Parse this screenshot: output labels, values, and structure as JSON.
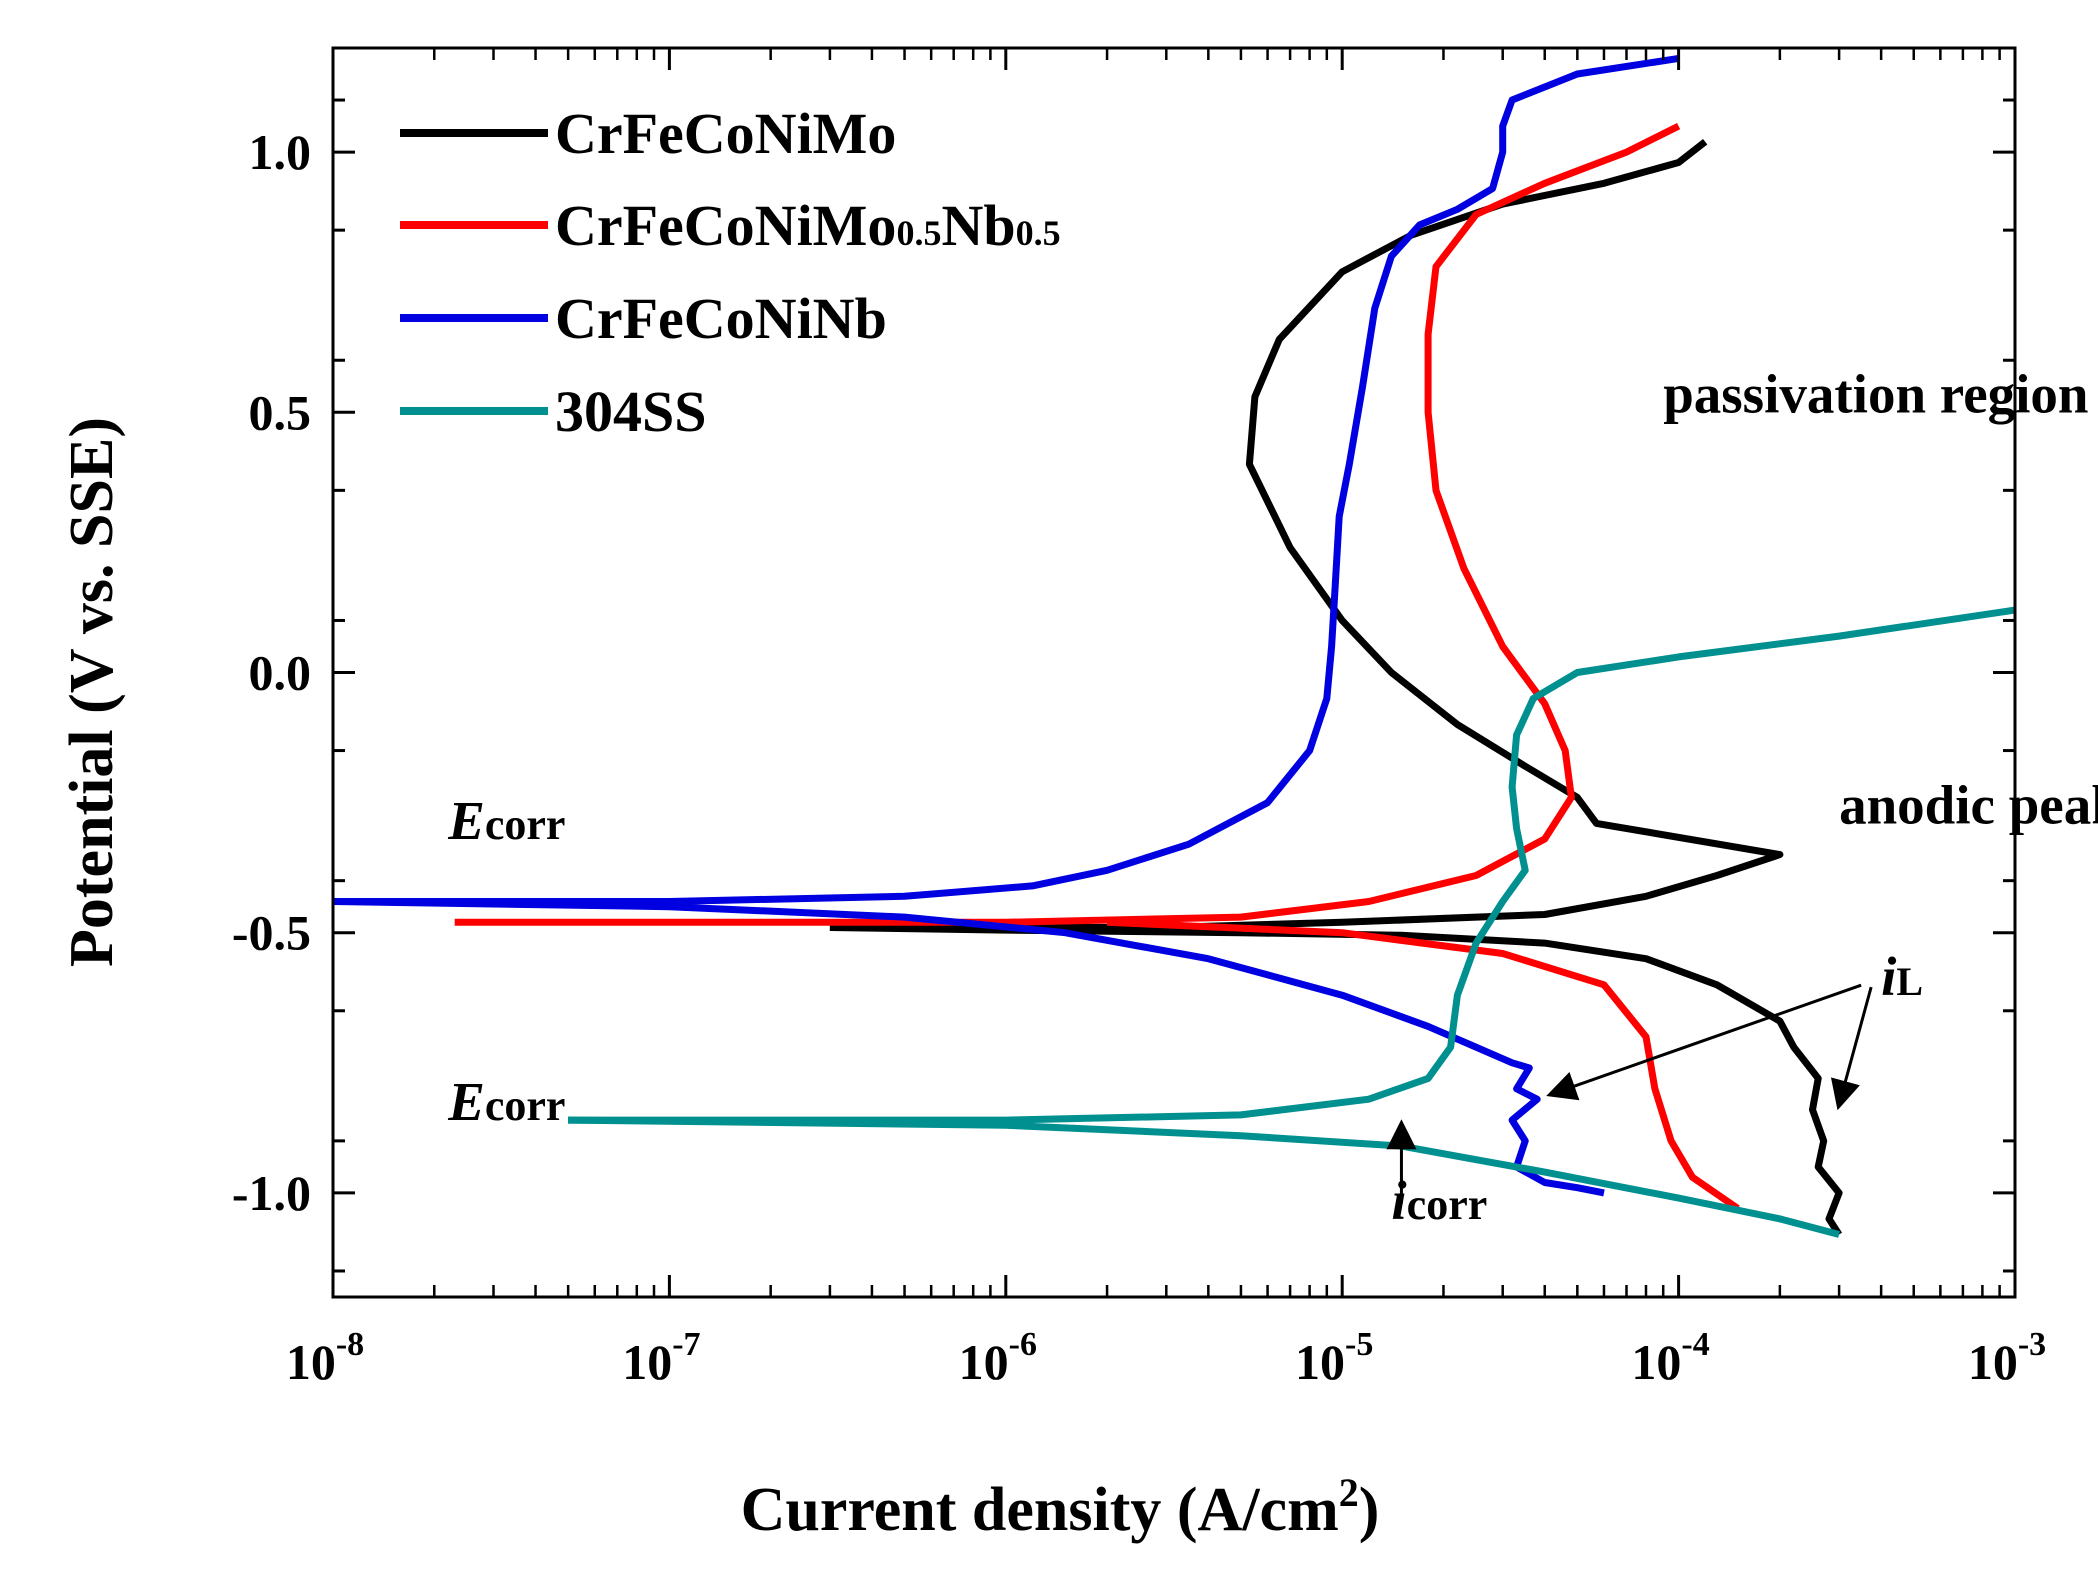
{
  "chart_data": {
    "type": "line",
    "title": "",
    "xlabel": "Current density (A/cm",
    "xlabel_sup": "2",
    "xlabel_close": ")",
    "ylabel": "Potential (V vs. SSE)",
    "xscale": "log",
    "xlim": [
      1e-08,
      0.001
    ],
    "ylim": [
      -1.2,
      1.2
    ],
    "x_ticks": [
      {
        "value": 1e-08,
        "base": "10",
        "exp": "-8"
      },
      {
        "value": 1e-07,
        "base": "10",
        "exp": "-7"
      },
      {
        "value": 1e-06,
        "base": "10",
        "exp": "-6"
      },
      {
        "value": 1e-05,
        "base": "10",
        "exp": "-5"
      },
      {
        "value": 0.0001,
        "base": "10",
        "exp": "-4"
      },
      {
        "value": 0.001,
        "base": "10",
        "exp": "-3"
      }
    ],
    "y_ticks": [
      {
        "value": 1.0,
        "label": "1.0"
      },
      {
        "value": 0.5,
        "label": "0.5"
      },
      {
        "value": 0.0,
        "label": "0.0"
      },
      {
        "value": -0.5,
        "label": "-0.5"
      },
      {
        "value": -1.0,
        "label": "-1.0"
      }
    ],
    "legend_position": "top-left",
    "series": [
      {
        "name": "CrFeCoNiMo",
        "name_main": "CrFeCoNiMo",
        "name_parts": [],
        "color": "#000000",
        "points": [
          [
            3e-07,
            -0.49
          ],
          [
            1e-06,
            -0.49
          ],
          [
            3e-06,
            -0.49
          ],
          [
            1e-05,
            -0.48
          ],
          [
            4e-05,
            -0.465
          ],
          [
            8e-05,
            -0.43
          ],
          [
            0.00013,
            -0.39
          ],
          [
            0.0002,
            -0.35
          ],
          [
            5.7e-05,
            -0.29
          ],
          [
            5e-05,
            -0.24
          ],
          [
            3.5e-05,
            -0.18
          ],
          [
            2.2e-05,
            -0.1
          ],
          [
            1.4e-05,
            0.0
          ],
          [
            1e-05,
            0.1
          ],
          [
            7e-06,
            0.24
          ],
          [
            5.3e-06,
            0.4
          ],
          [
            5.5e-06,
            0.53
          ],
          [
            6.5e-06,
            0.64
          ],
          [
            1e-05,
            0.77
          ],
          [
            1.6e-05,
            0.84
          ],
          [
            3e-05,
            0.9
          ],
          [
            6e-05,
            0.94
          ],
          [
            0.0001,
            0.98
          ],
          [
            0.00012,
            1.02
          ]
        ],
        "cathodic": [
          [
            3e-07,
            -0.49
          ],
          [
            1e-06,
            -0.495
          ],
          [
            5e-06,
            -0.5
          ],
          [
            1.5e-05,
            -0.505
          ],
          [
            4e-05,
            -0.52
          ],
          [
            8e-05,
            -0.55
          ],
          [
            0.00013,
            -0.6
          ],
          [
            0.0002,
            -0.67
          ],
          [
            0.00022,
            -0.72
          ],
          [
            0.00026,
            -0.78
          ],
          [
            0.00025,
            -0.84
          ],
          [
            0.00027,
            -0.9
          ],
          [
            0.00026,
            -0.95
          ],
          [
            0.0003,
            -1.0
          ],
          [
            0.00028,
            -1.05
          ],
          [
            0.0003,
            -1.08
          ]
        ]
      },
      {
        "name": "CrFeCoNiMo0.5Nb0.5",
        "name_main": "CrFeCoNiMo",
        "name_parts": [
          "0.5",
          "Nb",
          "0.5"
        ],
        "color": "#ff0000",
        "points": [
          [
            2.3e-08,
            -0.48
          ],
          [
            1e-07,
            -0.48
          ],
          [
            1e-06,
            -0.48
          ],
          [
            5e-06,
            -0.47
          ],
          [
            1.2e-05,
            -0.44
          ],
          [
            2.5e-05,
            -0.39
          ],
          [
            4e-05,
            -0.32
          ],
          [
            4.8e-05,
            -0.24
          ],
          [
            4.6e-05,
            -0.15
          ],
          [
            4e-05,
            -0.06
          ],
          [
            3e-05,
            0.05
          ],
          [
            2.3e-05,
            0.2
          ],
          [
            1.9e-05,
            0.35
          ],
          [
            1.8e-05,
            0.5
          ],
          [
            1.8e-05,
            0.65
          ],
          [
            1.9e-05,
            0.78
          ],
          [
            2.5e-05,
            0.88
          ],
          [
            4e-05,
            0.94
          ],
          [
            7e-05,
            1.0
          ],
          [
            0.0001,
            1.05
          ]
        ],
        "cathodic": [
          [
            2e-06,
            -0.48
          ],
          [
            1e-05,
            -0.5
          ],
          [
            3e-05,
            -0.54
          ],
          [
            6e-05,
            -0.6
          ],
          [
            8e-05,
            -0.7
          ],
          [
            8.5e-05,
            -0.8
          ],
          [
            9.5e-05,
            -0.9
          ],
          [
            0.00011,
            -0.97
          ],
          [
            0.00015,
            -1.03
          ]
        ]
      },
      {
        "name": "CrFeCoNiNb",
        "name_main": "CrFeCoNiNb",
        "name_parts": [],
        "color": "#0000e0",
        "points": [
          [
            1e-08,
            -0.44
          ],
          [
            1e-07,
            -0.44
          ],
          [
            5e-07,
            -0.43
          ],
          [
            1.2e-06,
            -0.41
          ],
          [
            2e-06,
            -0.38
          ],
          [
            3.5e-06,
            -0.33
          ],
          [
            6e-06,
            -0.25
          ],
          [
            8e-06,
            -0.15
          ],
          [
            9e-06,
            -0.05
          ],
          [
            9.3e-06,
            0.05
          ],
          [
            9.5e-06,
            0.15
          ],
          [
            9.8e-06,
            0.3
          ],
          [
            1.05e-05,
            0.4
          ],
          [
            1.15e-05,
            0.55
          ],
          [
            1.25e-05,
            0.7
          ],
          [
            1.4e-05,
            0.8
          ],
          [
            1.7e-05,
            0.86
          ],
          [
            2.2e-05,
            0.89
          ],
          [
            2.8e-05,
            0.93
          ],
          [
            3e-05,
            1.0
          ],
          [
            3e-05,
            1.05
          ],
          [
            3.2e-05,
            1.1
          ],
          [
            5e-05,
            1.15
          ],
          [
            0.0001,
            1.18
          ]
        ],
        "cathodic": [
          [
            1e-08,
            -0.44
          ],
          [
            1e-07,
            -0.45
          ],
          [
            5e-07,
            -0.47
          ],
          [
            1.5e-06,
            -0.5
          ],
          [
            4e-06,
            -0.55
          ],
          [
            1e-05,
            -0.62
          ],
          [
            1.8e-05,
            -0.68
          ],
          [
            2.5e-05,
            -0.72
          ],
          [
            3.2e-05,
            -0.75
          ],
          [
            3.6e-05,
            -0.76
          ],
          [
            3.3e-05,
            -0.8
          ],
          [
            3.8e-05,
            -0.82
          ],
          [
            3.2e-05,
            -0.86
          ],
          [
            3.5e-05,
            -0.9
          ],
          [
            3.3e-05,
            -0.95
          ],
          [
            4e-05,
            -0.98
          ],
          [
            5e-05,
            -0.99
          ],
          [
            6e-05,
            -1.0
          ]
        ]
      },
      {
        "name": "304SS",
        "name_main": "304SS",
        "name_parts": [],
        "color": "#009090",
        "points": [
          [
            5e-08,
            -0.86
          ],
          [
            1e-06,
            -0.86
          ],
          [
            5e-06,
            -0.85
          ],
          [
            1.2e-05,
            -0.82
          ],
          [
            1.8e-05,
            -0.78
          ],
          [
            2.1e-05,
            -0.72
          ],
          [
            2.2e-05,
            -0.62
          ],
          [
            2.5e-05,
            -0.52
          ],
          [
            3e-05,
            -0.44
          ],
          [
            3.5e-05,
            -0.38
          ],
          [
            3.3e-05,
            -0.3
          ],
          [
            3.2e-05,
            -0.22
          ],
          [
            3.3e-05,
            -0.12
          ],
          [
            3.7e-05,
            -0.05
          ],
          [
            5e-05,
            0.0
          ],
          [
            0.0001,
            0.03
          ],
          [
            0.0003,
            0.07
          ],
          [
            0.001,
            0.12
          ]
        ],
        "cathodic": [
          [
            5e-08,
            -0.86
          ],
          [
            1e-06,
            -0.87
          ],
          [
            5e-06,
            -0.89
          ],
          [
            1.5e-05,
            -0.91
          ],
          [
            4e-05,
            -0.96
          ],
          [
            0.0001,
            -1.01
          ],
          [
            0.0002,
            -1.05
          ],
          [
            0.0003,
            -1.08
          ]
        ]
      }
    ],
    "annotations": {
      "ecorr_upper": {
        "main": "E",
        "sub": "corr",
        "at": [
          2.2e-08,
          -0.32
        ]
      },
      "ecorr_lower": {
        "main": "E",
        "sub": "corr",
        "at": [
          2.2e-08,
          -0.86
        ]
      },
      "passivation": {
        "text": "passivation region",
        "at": [
          9e-05,
          0.5
        ]
      },
      "anodic_peak": {
        "text": "anodic peak",
        "at": [
          0.0003,
          -0.29
        ]
      },
      "iL": {
        "main": "i",
        "sub": "L",
        "at": [
          0.0004,
          -0.62
        ]
      },
      "icorr": {
        "main": "i",
        "sub": "corr",
        "at": [
          1.4e-05,
          -1.05
        ]
      }
    }
  }
}
